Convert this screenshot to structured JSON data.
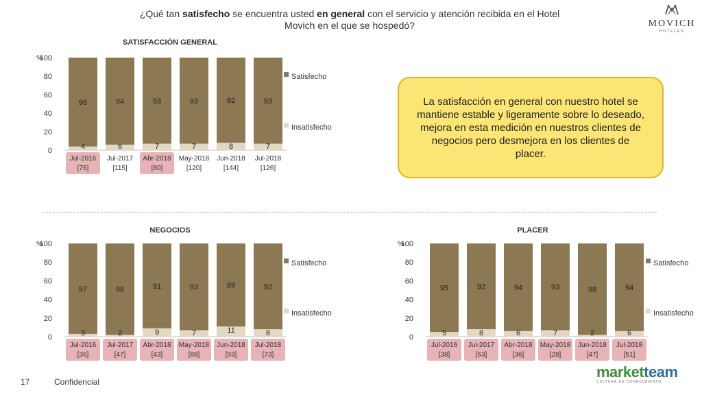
{
  "question": {
    "pre": "¿Qué tan ",
    "bold1": "satisfecho",
    "mid": " se encuentra usted ",
    "bold2": "en general",
    "post": " con el servicio y atención recibida en el Hotel Movich en el que se hospedó?"
  },
  "logo": {
    "name": "MOVICH",
    "sub": "HOTELES"
  },
  "callout": "La satisfacción en general con nuestro hotel se mantiene estable y ligeramente sobre lo deseado, mejora en esta medición en nuestros clientes de negocios pero desmejora en los clientes de placer.",
  "footer": {
    "page": "17",
    "label": "Confidencial",
    "brand_a": "market",
    "brand_b": "team",
    "tagline": "CULTURA DE CONOCIMIENTO"
  },
  "colors": {
    "satisfecho": "#8c7853",
    "insatisfecho": "#e3d8c4",
    "highlight": "#e7b3b6",
    "callout_bg": "#fbe574",
    "callout_border": "#e3b520"
  },
  "chart_data": [
    {
      "type": "bar",
      "stacked": true,
      "title": "SATISFACCIÓN GENERAL",
      "ylabel": "%",
      "ylim": [
        0,
        100
      ],
      "yticks": [
        0,
        20,
        40,
        60,
        80,
        100
      ],
      "categories": [
        "Jul-2016",
        "Jul-2017",
        "Abr-2018",
        "May-2018",
        "Jun-2018",
        "Jul-2018"
      ],
      "bases": [
        "[76]",
        "[115]",
        "[80]",
        "[120]",
        "[144]",
        "[126]"
      ],
      "highlighted": [
        0,
        2
      ],
      "series": [
        {
          "name": "Insatisfecho",
          "values": [
            4,
            6,
            7,
            7,
            8,
            7
          ]
        },
        {
          "name": "Satisfecho",
          "values": [
            96,
            94,
            93,
            93,
            92,
            93
          ]
        }
      ],
      "legend": [
        "Satisfecho",
        "Insatisfecho"
      ]
    },
    {
      "type": "bar",
      "stacked": true,
      "title": "NEGOCIOS",
      "ylabel": "%",
      "ylim": [
        0,
        100
      ],
      "yticks": [
        0,
        20,
        40,
        60,
        80,
        100
      ],
      "categories": [
        "Jul-2016",
        "Jul-2017",
        "Abr-2018",
        "May-2018",
        "Jun-2018",
        "Jul-2018"
      ],
      "bases": [
        "[36]",
        "[47]",
        "[43]",
        "[88]",
        "[93]",
        "[73]"
      ],
      "highlighted": [
        0,
        1,
        2,
        3,
        4,
        5
      ],
      "series": [
        {
          "name": "Insatisfecho",
          "values": [
            3,
            2,
            9,
            7,
            11,
            8
          ]
        },
        {
          "name": "Satisfecho",
          "values": [
            97,
            98,
            91,
            93,
            89,
            92
          ]
        }
      ],
      "legend": [
        "Satisfecho",
        "Insatisfecho"
      ]
    },
    {
      "type": "bar",
      "stacked": true,
      "title": "PLACER",
      "ylabel": "%",
      "ylim": [
        0,
        100
      ],
      "yticks": [
        0,
        20,
        40,
        60,
        80,
        100
      ],
      "categories": [
        "Jul-2016",
        "Jul-2017",
        "Abr-2018",
        "May-2018",
        "Jun-2018",
        "Jul-2018"
      ],
      "bases": [
        "[38]",
        "[63]",
        "[36]",
        "[28]",
        "[47]",
        "[51]"
      ],
      "highlighted": [
        0,
        1,
        2,
        3,
        4,
        5
      ],
      "series": [
        {
          "name": "Insatisfecho",
          "values": [
            5,
            8,
            6,
            7,
            2,
            6
          ]
        },
        {
          "name": "Satisfecho",
          "values": [
            95,
            92,
            94,
            93,
            98,
            94
          ]
        }
      ],
      "legend": [
        "Satisfecho",
        "Insatisfecho"
      ]
    }
  ]
}
